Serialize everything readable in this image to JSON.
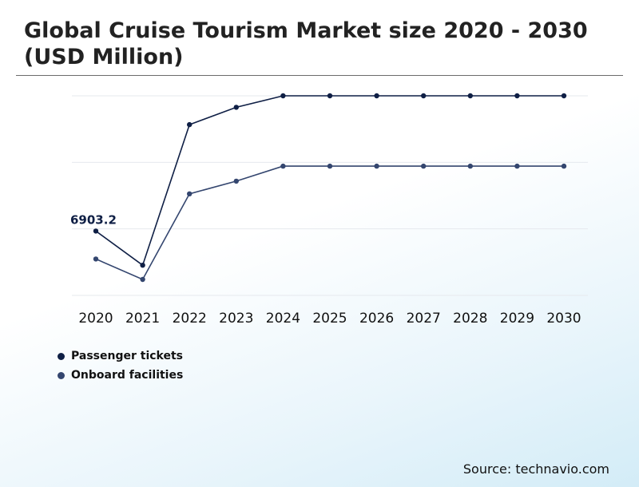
{
  "title": "Global Cruise Tourism Market size 2020 - 2030 (USD Million)",
  "source": "Source: technavio.com",
  "colors": {
    "passenger": "#0f1f45",
    "onboard": "#34466f",
    "grid": "#e6e9ee",
    "text": "#111111"
  },
  "chart_data": {
    "type": "line",
    "title": "Global Cruise Tourism Market size 2020 - 2030 (USD Million)",
    "xlabel": "",
    "ylabel": "",
    "x": [
      "2020",
      "2021",
      "2022",
      "2023",
      "2024",
      "2025",
      "2026",
      "2027",
      "2028",
      "2029",
      "2030"
    ],
    "ylim": [
      4000,
      13000
    ],
    "grid": true,
    "legend": "bottom-left",
    "series": [
      {
        "name": "Passenger tickets",
        "values": [
          6903.2,
          5360,
          11700,
          12480,
          13000,
          13000,
          13000,
          13000,
          13000,
          13000,
          13000
        ]
      },
      {
        "name": "Onboard facilities",
        "values": [
          5640,
          4720,
          8580,
          9150,
          9830,
          9830,
          9830,
          9830,
          9830,
          9830,
          9830
        ]
      }
    ],
    "annotations": [
      {
        "series": 0,
        "index": 0,
        "text": "6903.2"
      }
    ]
  }
}
